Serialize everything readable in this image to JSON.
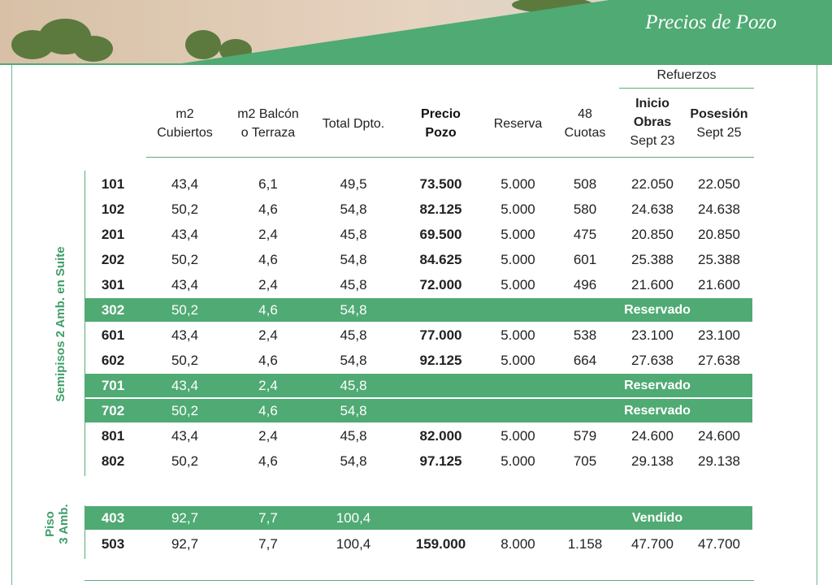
{
  "banner": {
    "title": "Precios de Pozo"
  },
  "headers": {
    "m2_cubiertos": [
      "m2",
      "Cubiertos"
    ],
    "m2_balcon": [
      "m2 Balcón",
      "o Terraza"
    ],
    "total": [
      "Total Dpto."
    ],
    "precio": [
      "Precio",
      "Pozo"
    ],
    "reserva": [
      "Reserva"
    ],
    "cuotas": [
      "48",
      "Cuotas"
    ],
    "refuerzos": "Refuerzos",
    "inicio": [
      "Inicio",
      "Obras",
      "Sept 23"
    ],
    "posesion": [
      "Posesión",
      "Sept 25"
    ]
  },
  "groups": [
    {
      "label": "Semipisos 2 Amb. en Suite"
    },
    {
      "label_line1": "Piso",
      "label_line2": "3 Amb."
    }
  ],
  "rows": [
    {
      "unit": "101",
      "cub": "43,4",
      "balc": "6,1",
      "total": "49,5",
      "precio": "73.500",
      "reserva": "5.000",
      "cuotas": "508",
      "inicio": "22.050",
      "posesion": "22.050",
      "status": ""
    },
    {
      "unit": "102",
      "cub": "50,2",
      "balc": "4,6",
      "total": "54,8",
      "precio": "82.125",
      "reserva": "5.000",
      "cuotas": "580",
      "inicio": "24.638",
      "posesion": "24.638",
      "status": ""
    },
    {
      "unit": "201",
      "cub": "43,4",
      "balc": "2,4",
      "total": "45,8",
      "precio": "69.500",
      "reserva": "5.000",
      "cuotas": "475",
      "inicio": "20.850",
      "posesion": "20.850",
      "status": ""
    },
    {
      "unit": "202",
      "cub": "50,2",
      "balc": "4,6",
      "total": "54,8",
      "precio": "84.625",
      "reserva": "5.000",
      "cuotas": "601",
      "inicio": "25.388",
      "posesion": "25.388",
      "status": ""
    },
    {
      "unit": "301",
      "cub": "43,4",
      "balc": "2,4",
      "total": "45,8",
      "precio": "72.000",
      "reserva": "5.000",
      "cuotas": "496",
      "inicio": "21.600",
      "posesion": "21.600",
      "status": ""
    },
    {
      "unit": "302",
      "cub": "50,2",
      "balc": "4,6",
      "total": "54,8",
      "status": "Reservado"
    },
    {
      "unit": "601",
      "cub": "43,4",
      "balc": "2,4",
      "total": "45,8",
      "precio": "77.000",
      "reserva": "5.000",
      "cuotas": "538",
      "inicio": "23.100",
      "posesion": "23.100",
      "status": ""
    },
    {
      "unit": "602",
      "cub": "50,2",
      "balc": "4,6",
      "total": "54,8",
      "precio": "92.125",
      "reserva": "5.000",
      "cuotas": "664",
      "inicio": "27.638",
      "posesion": "27.638",
      "status": ""
    },
    {
      "unit": "701",
      "cub": "43,4",
      "balc": "2,4",
      "total": "45,8",
      "status": "Reservado"
    },
    {
      "unit": "702",
      "cub": "50,2",
      "balc": "4,6",
      "total": "54,8",
      "status": "Reservado"
    },
    {
      "unit": "801",
      "cub": "43,4",
      "balc": "2,4",
      "total": "45,8",
      "precio": "82.000",
      "reserva": "5.000",
      "cuotas": "579",
      "inicio": "24.600",
      "posesion": "24.600",
      "status": ""
    },
    {
      "unit": "802",
      "cub": "50,2",
      "balc": "4,6",
      "total": "54,8",
      "precio": "97.125",
      "reserva": "5.000",
      "cuotas": "705",
      "inicio": "29.138",
      "posesion": "29.138",
      "status": ""
    },
    {
      "unit": "403",
      "cub": "92,7",
      "balc": "7,7",
      "total": "100,4",
      "status": "Vendido"
    },
    {
      "unit": "503",
      "cub": "92,7",
      "balc": "7,7",
      "total": "100,4",
      "precio": "159.000",
      "reserva": "8.000",
      "cuotas": "1.158",
      "inicio": "47.700",
      "posesion": "47.700",
      "status": ""
    }
  ],
  "colors": {
    "accent": "#4faa73",
    "line": "#5aaa78",
    "group_text": "#3f9e68"
  }
}
